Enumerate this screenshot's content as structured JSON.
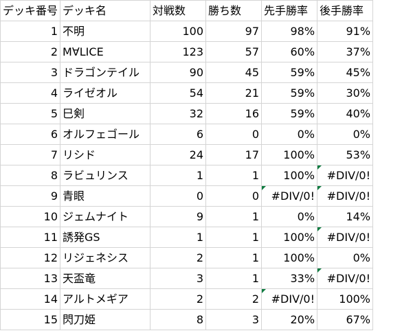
{
  "headers": [
    "デッキ番号",
    "デッキ名",
    "対戦数",
    "勝ち数",
    "先手勝率",
    "後手勝率"
  ],
  "rows": [
    {
      "no": "1",
      "name": "不明",
      "games": "100",
      "wins": "97",
      "first": "98%",
      "second": "91%"
    },
    {
      "no": "2",
      "name": "M∀LICE",
      "games": "123",
      "wins": "57",
      "first": "60%",
      "second": "37%"
    },
    {
      "no": "3",
      "name": "ドラゴンテイル",
      "games": "90",
      "wins": "45",
      "first": "59%",
      "second": "45%"
    },
    {
      "no": "4",
      "name": "ライゼオル",
      "games": "54",
      "wins": "21",
      "first": "59%",
      "second": "30%"
    },
    {
      "no": "5",
      "name": "巳剣",
      "games": "32",
      "wins": "16",
      "first": "59%",
      "second": "40%"
    },
    {
      "no": "6",
      "name": "オルフェゴール",
      "games": "6",
      "wins": "0",
      "first": "0%",
      "second": "0%"
    },
    {
      "no": "7",
      "name": "リシド",
      "games": "24",
      "wins": "17",
      "first": "100%",
      "second": "53%"
    },
    {
      "no": "8",
      "name": "ラビュリンス",
      "games": "1",
      "wins": "1",
      "first": "100%",
      "second": "#DIV/0!"
    },
    {
      "no": "9",
      "name": "青眼",
      "games": "0",
      "wins": "0",
      "first": "#DIV/0!",
      "second": "#DIV/0!"
    },
    {
      "no": "10",
      "name": "ジェムナイト",
      "games": "9",
      "wins": "1",
      "first": "0%",
      "second": "14%"
    },
    {
      "no": "11",
      "name": "誘発GS",
      "games": "1",
      "wins": "1",
      "first": "100%",
      "second": "#DIV/0!"
    },
    {
      "no": "12",
      "name": "リジェネシス",
      "games": "2",
      "wins": "1",
      "first": "100%",
      "second": "0%"
    },
    {
      "no": "13",
      "name": "天盃竜",
      "games": "3",
      "wins": "1",
      "first": "33%",
      "second": "#DIV/0!"
    },
    {
      "no": "14",
      "name": "アルトメギア",
      "games": "2",
      "wins": "2",
      "first": "#DIV/0!",
      "second": "100%"
    },
    {
      "no": "15",
      "name": "閃刀姫",
      "games": "8",
      "wins": "3",
      "first": "20%",
      "second": "67%"
    }
  ],
  "colors": {
    "gridline": "#d4d4d4",
    "error_flag": "#107c41"
  }
}
